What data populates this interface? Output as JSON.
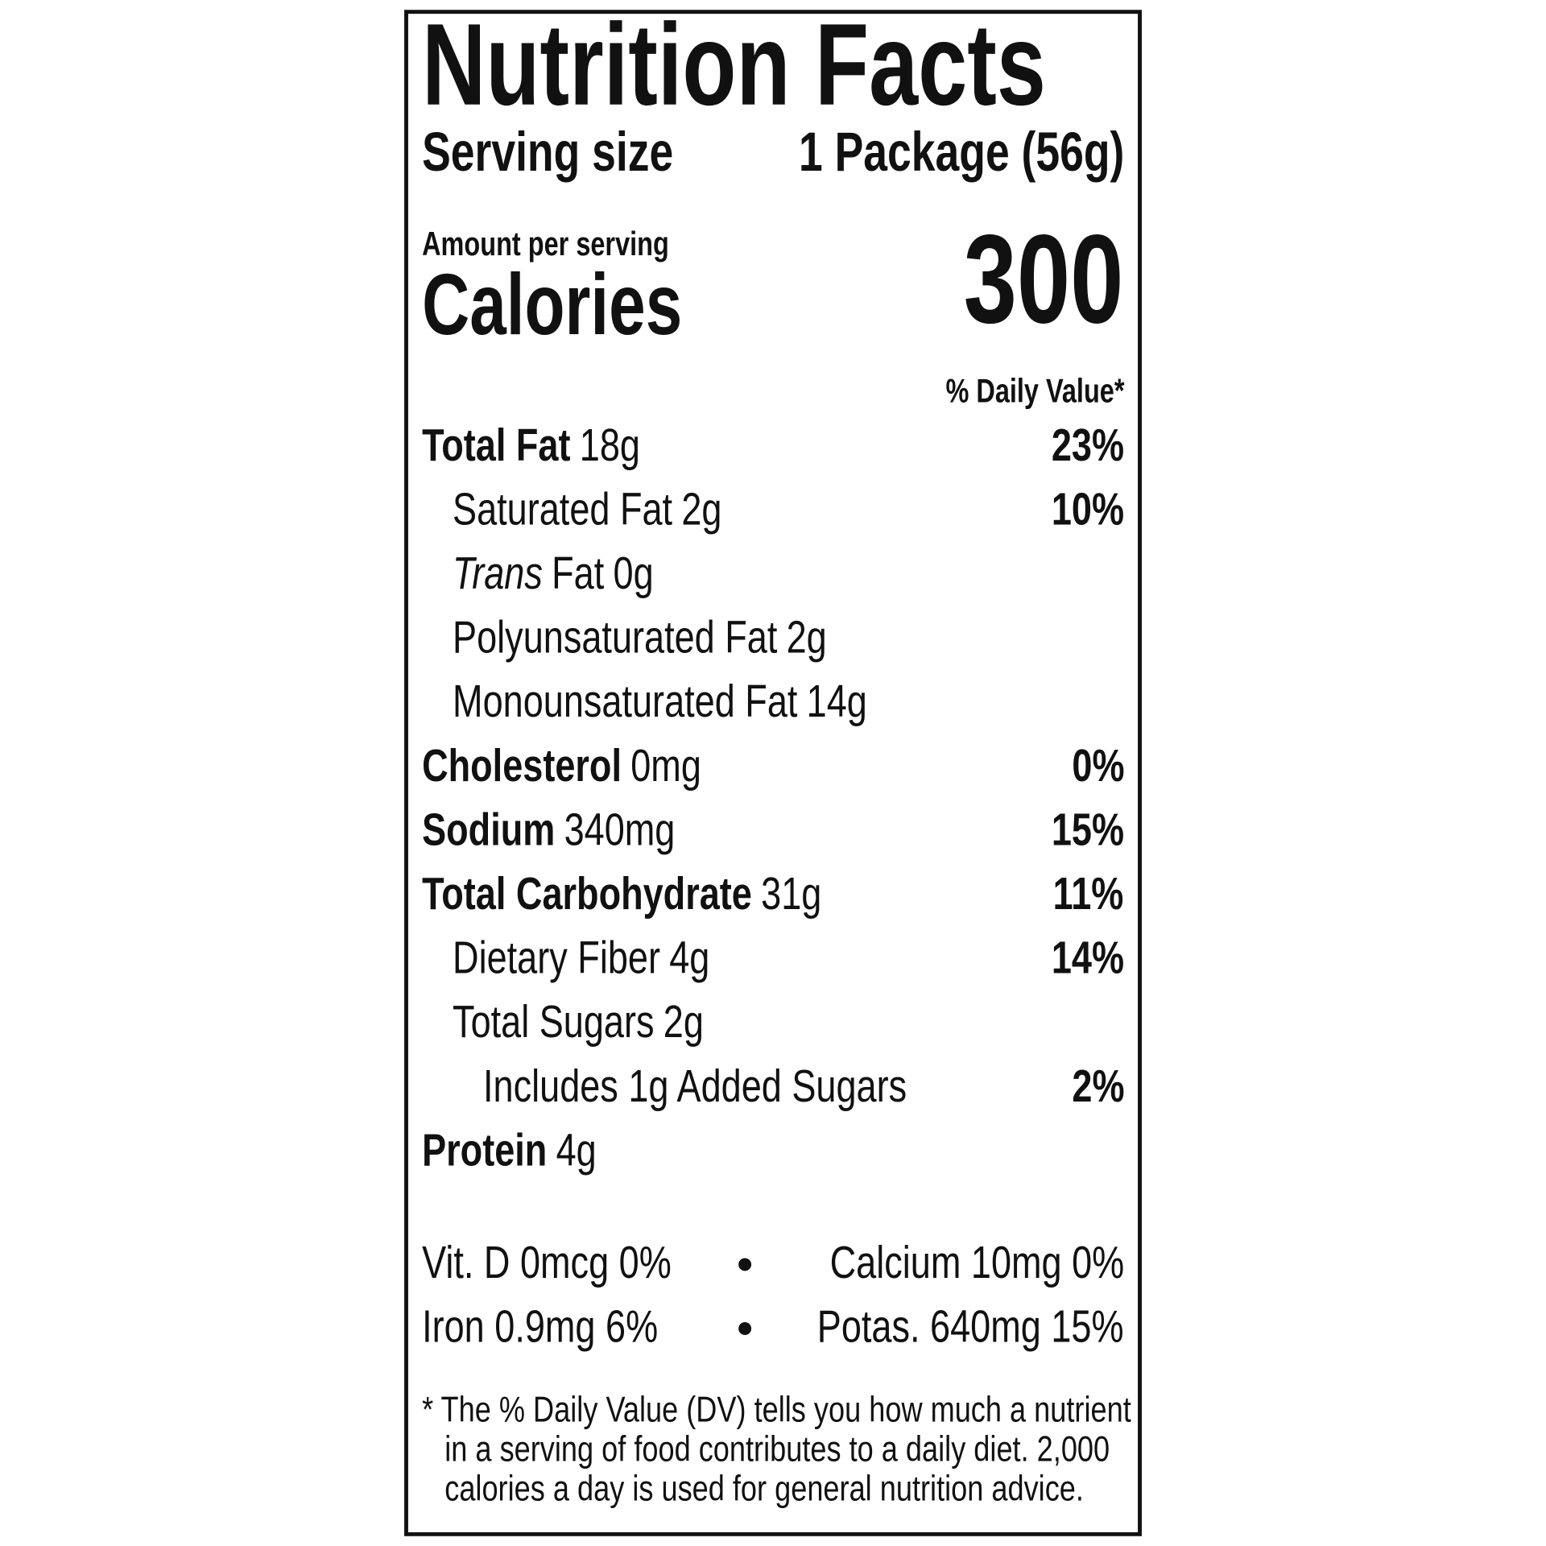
{
  "title": "Nutrition Facts",
  "serving": {
    "label": "Serving size",
    "value": "1 Package (56g)"
  },
  "amount_per_serving": "Amount per serving",
  "calories": {
    "label": "Calories",
    "value": "300"
  },
  "dv_header": "% Daily Value*",
  "rows": [
    {
      "label": "Total Fat",
      "amount": "18g",
      "dv": "23%",
      "bold": true,
      "indent": 0
    },
    {
      "label": "Saturated Fat",
      "amount": "2g",
      "dv": "10%",
      "bold": false,
      "indent": 1
    },
    {
      "label_italic": "Trans",
      "label": "Fat",
      "amount": "0g",
      "bold": false,
      "indent": 1
    },
    {
      "label": "Polyunsaturated Fat",
      "amount": "2g",
      "bold": false,
      "indent": 1
    },
    {
      "label": "Monounsaturated Fat",
      "amount": "14g",
      "bold": false,
      "indent": 1
    },
    {
      "label": "Cholesterol",
      "amount": "0mg",
      "dv": "0%",
      "bold": true,
      "indent": 0
    },
    {
      "label": "Sodium",
      "amount": "340mg",
      "dv": "15%",
      "bold": true,
      "indent": 0
    },
    {
      "label": "Total Carbohydrate",
      "amount": "31g",
      "dv": "11%",
      "bold": true,
      "indent": 0
    },
    {
      "label": "Dietary Fiber",
      "amount": "4g",
      "dv": "14%",
      "bold": false,
      "indent": 1
    },
    {
      "label": "Total Sugars",
      "amount": "2g",
      "bold": false,
      "indent": 1
    },
    {
      "label": "Includes 1g Added Sugars",
      "dv": "2%",
      "bold": false,
      "indent": 2
    },
    {
      "label": "Protein",
      "amount": "4g",
      "bold": true,
      "indent": 0
    }
  ],
  "vitamins": [
    {
      "left": "Vit. D 0mcg 0%",
      "right": "Calcium 10mg 0%"
    },
    {
      "left": "Iron 0.9mg 6%",
      "right": "Potas. 640mg 15%"
    }
  ],
  "footnote": [
    "* The % Daily Value (DV) tells you how much a nutrient",
    "in a serving of food contributes to a daily diet. 2,000",
    "calories a day is used for general nutrition advice."
  ]
}
